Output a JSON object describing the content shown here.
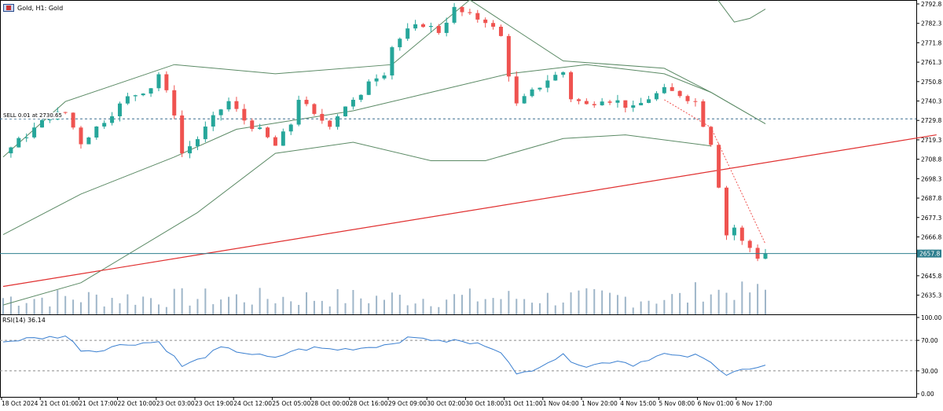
{
  "header": {
    "title": "Gold, H1:  Gold"
  },
  "trade_line": {
    "label": "SELL 0.01 at 2730.65"
  },
  "rsi_panel": {
    "label": "RSI(14) 36.14"
  },
  "colors": {
    "bull": "#26a69a",
    "bear": "#ef5350",
    "band": "#5b8a65",
    "trendline": "#e03030",
    "rsi": "#3a7fd0",
    "price_line": "#2f7f8f",
    "volume": "#9fb6c9"
  },
  "chart_data": [
    {
      "type": "candlestick",
      "title": "Gold, H1:  Gold",
      "ylim": [
        2624.5,
        2792.8
      ],
      "y_ticks": [
        "2792.8",
        "2782.3",
        "2771.8",
        "2761.3",
        "2750.8",
        "2740.3",
        "2729.8",
        "2719.3",
        "2708.8",
        "2698.3",
        "2687.8",
        "2677.3",
        "2666.8",
        "2645.8",
        "2635.3"
      ],
      "x_tick_labels": [
        "18 Oct 2024",
        "21 Oct 01:00",
        "21 Oct 17:00",
        "22 Oct 10:00",
        "23 Oct 03:00",
        "23 Oct 19:00",
        "24 Oct 12:00",
        "25 Oct 05:00",
        "28 Oct 00:00",
        "28 Oct 16:00",
        "29 Oct 09:00",
        "30 Oct 02:00",
        "30 Oct 18:00",
        "31 Oct 11:00",
        "1 Nov 04:00",
        "1 Nov 20:00",
        "4 Nov 15:00",
        "5 Nov 08:00",
        "6 Nov 01:00",
        "6 Nov 17:00"
      ],
      "close_path": [
        [
          0,
          2712
        ],
        [
          3,
          2722
        ],
        [
          6,
          2732
        ],
        [
          8,
          2734
        ],
        [
          10,
          2718
        ],
        [
          13,
          2730
        ],
        [
          16,
          2742
        ],
        [
          19,
          2748
        ],
        [
          20,
          2755
        ],
        [
          22,
          2734
        ],
        [
          23,
          2712
        ],
        [
          25,
          2720
        ],
        [
          28,
          2736
        ],
        [
          29,
          2740
        ],
        [
          31,
          2730
        ],
        [
          33,
          2724
        ],
        [
          35,
          2716
        ],
        [
          37,
          2728
        ],
        [
          38,
          2742
        ],
        [
          40,
          2732
        ],
        [
          42,
          2728
        ],
        [
          44,
          2738
        ],
        [
          46,
          2742
        ],
        [
          47,
          2752
        ],
        [
          49,
          2756
        ],
        [
          50,
          2770
        ],
        [
          52,
          2778
        ],
        [
          54,
          2782
        ],
        [
          56,
          2778
        ],
        [
          58,
          2790
        ],
        [
          60,
          2786
        ],
        [
          62,
          2784
        ],
        [
          64,
          2775
        ],
        [
          65,
          2755
        ],
        [
          66,
          2738
        ],
        [
          68,
          2745
        ],
        [
          70,
          2752
        ],
        [
          72,
          2756
        ],
        [
          73,
          2742
        ],
        [
          75,
          2738
        ],
        [
          77,
          2742
        ],
        [
          79,
          2740
        ],
        [
          81,
          2736
        ],
        [
          83,
          2742
        ],
        [
          85,
          2746
        ],
        [
          87,
          2744
        ],
        [
          89,
          2740
        ],
        [
          90,
          2728
        ],
        [
          91,
          2718
        ],
        [
          92,
          2695
        ],
        [
          93,
          2668
        ],
        [
          94,
          2672
        ],
        [
          95,
          2664
        ],
        [
          96,
          2661
        ],
        [
          97,
          2656
        ],
        [
          98,
          2657.8
        ]
      ],
      "bands": {
        "upper": [
          [
            0,
            2710
          ],
          [
            8,
            2740
          ],
          [
            22,
            2760
          ],
          [
            35,
            2755
          ],
          [
            50,
            2760
          ],
          [
            60,
            2795
          ],
          [
            72,
            2762
          ],
          [
            85,
            2758
          ],
          [
            91,
            2745
          ],
          [
            98,
            2728
          ]
        ],
        "middle": [
          [
            0,
            2668
          ],
          [
            10,
            2690
          ],
          [
            22,
            2710
          ],
          [
            30,
            2725
          ],
          [
            45,
            2735
          ],
          [
            55,
            2745
          ],
          [
            65,
            2755
          ],
          [
            75,
            2760
          ],
          [
            85,
            2755
          ],
          [
            91,
            2745
          ],
          [
            98,
            2728
          ]
        ],
        "lower": [
          [
            0,
            2630
          ],
          [
            10,
            2642
          ],
          [
            25,
            2680
          ],
          [
            35,
            2712
          ],
          [
            45,
            2718
          ],
          [
            55,
            2708
          ],
          [
            62,
            2708
          ],
          [
            72,
            2720
          ],
          [
            80,
            2722
          ],
          [
            91,
            2716
          ]
        ],
        "lower2": [
          [
            91,
            2800
          ],
          [
            94,
            2783
          ],
          [
            96,
            2785
          ],
          [
            98,
            2790
          ]
        ]
      },
      "trendline": [
        [
          0,
          2640
        ],
        [
          120,
          2722
        ]
      ],
      "current_price": "2657.8",
      "sell_level": 2730.65
    },
    {
      "type": "line",
      "title": "RSI(14) 36.14",
      "ylim": [
        0,
        100
      ],
      "y_ticks": [
        "100.00",
        "70.00",
        "30.00",
        "0.00"
      ],
      "levels": [
        70,
        30
      ],
      "series": [
        {
          "name": "RSI(14)",
          "points": [
            [
              0,
              68
            ],
            [
              3,
              72
            ],
            [
              6,
              74
            ],
            [
              8,
              76
            ],
            [
              10,
              58
            ],
            [
              12,
              56
            ],
            [
              14,
              62
            ],
            [
              17,
              66
            ],
            [
              20,
              68
            ],
            [
              22,
              48
            ],
            [
              23,
              36
            ],
            [
              25,
              44
            ],
            [
              28,
              60
            ],
            [
              31,
              54
            ],
            [
              33,
              50
            ],
            [
              35,
              46
            ],
            [
              37,
              56
            ],
            [
              40,
              60
            ],
            [
              43,
              58
            ],
            [
              46,
              60
            ],
            [
              49,
              64
            ],
            [
              52,
              72
            ],
            [
              54,
              74
            ],
            [
              56,
              68
            ],
            [
              58,
              70
            ],
            [
              60,
              66
            ],
            [
              62,
              64
            ],
            [
              64,
              56
            ],
            [
              65,
              40
            ],
            [
              66,
              24
            ],
            [
              68,
              32
            ],
            [
              70,
              42
            ],
            [
              72,
              50
            ],
            [
              73,
              44
            ],
            [
              75,
              36
            ],
            [
              77,
              40
            ],
            [
              79,
              44
            ],
            [
              81,
              38
            ],
            [
              83,
              46
            ],
            [
              85,
              52
            ],
            [
              87,
              48
            ],
            [
              89,
              50
            ],
            [
              90,
              46
            ],
            [
              91,
              40
            ],
            [
              92,
              34
            ],
            [
              93,
              26
            ],
            [
              94,
              30
            ],
            [
              95,
              32
            ],
            [
              96,
              31
            ],
            [
              97,
              34
            ],
            [
              98,
              36.14
            ]
          ]
        }
      ]
    }
  ]
}
